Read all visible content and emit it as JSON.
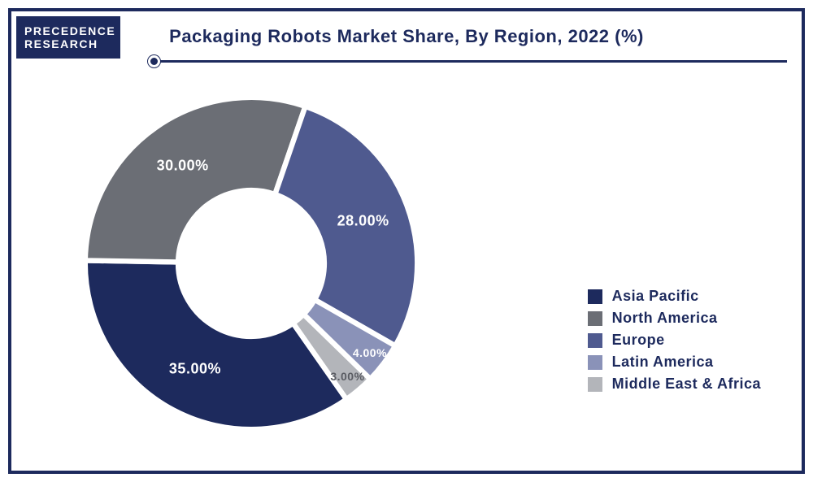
{
  "logo": {
    "line1": "PRECEDENCE",
    "line2": "RESEARCH"
  },
  "title": "Packaging Robots Market Share, By Region, 2022 (%)",
  "chart": {
    "type": "donut",
    "background_color": "#ffffff",
    "inner_radius_pct": 44,
    "outer_radius_pct": 100,
    "start_angle_deg": 55,
    "segments": [
      {
        "name": "Asia Pacific",
        "value": 35.0,
        "label": "35.00%",
        "color": "#1d2a5d",
        "label_color": "#ffffff"
      },
      {
        "name": "North America",
        "value": 30.0,
        "label": "30.00%",
        "color": "#6b6e75",
        "label_color": "#ffffff"
      },
      {
        "name": "Europe",
        "value": 28.0,
        "label": "28.00%",
        "color": "#4f5a8f",
        "label_color": "#ffffff"
      },
      {
        "name": "Latin America",
        "value": 4.0,
        "label": "4.00%",
        "color": "#8a92b8",
        "label_color": "#ffffff"
      },
      {
        "name": "Middle East & Africa",
        "value": 3.0,
        "label": "3.00%",
        "color": "#b3b5ba",
        "label_color": "#5a5c63"
      }
    ],
    "stroke_color": "#ffffff",
    "stroke_width": 3,
    "label_fontsize": 18,
    "label_fontweight": 800
  },
  "legend": {
    "fontsize": 18,
    "fontweight": 800,
    "text_color": "#1d2a5d",
    "items": [
      {
        "label": "Asia Pacific",
        "color": "#1d2a5d"
      },
      {
        "label": "North America",
        "color": "#6b6e75"
      },
      {
        "label": "Europe",
        "color": "#4f5a8f"
      },
      {
        "label": "Latin America",
        "color": "#8a92b8"
      },
      {
        "label": "Middle East & Africa",
        "color": "#b3b5ba"
      }
    ]
  },
  "frame_border_color": "#1d2a5d"
}
